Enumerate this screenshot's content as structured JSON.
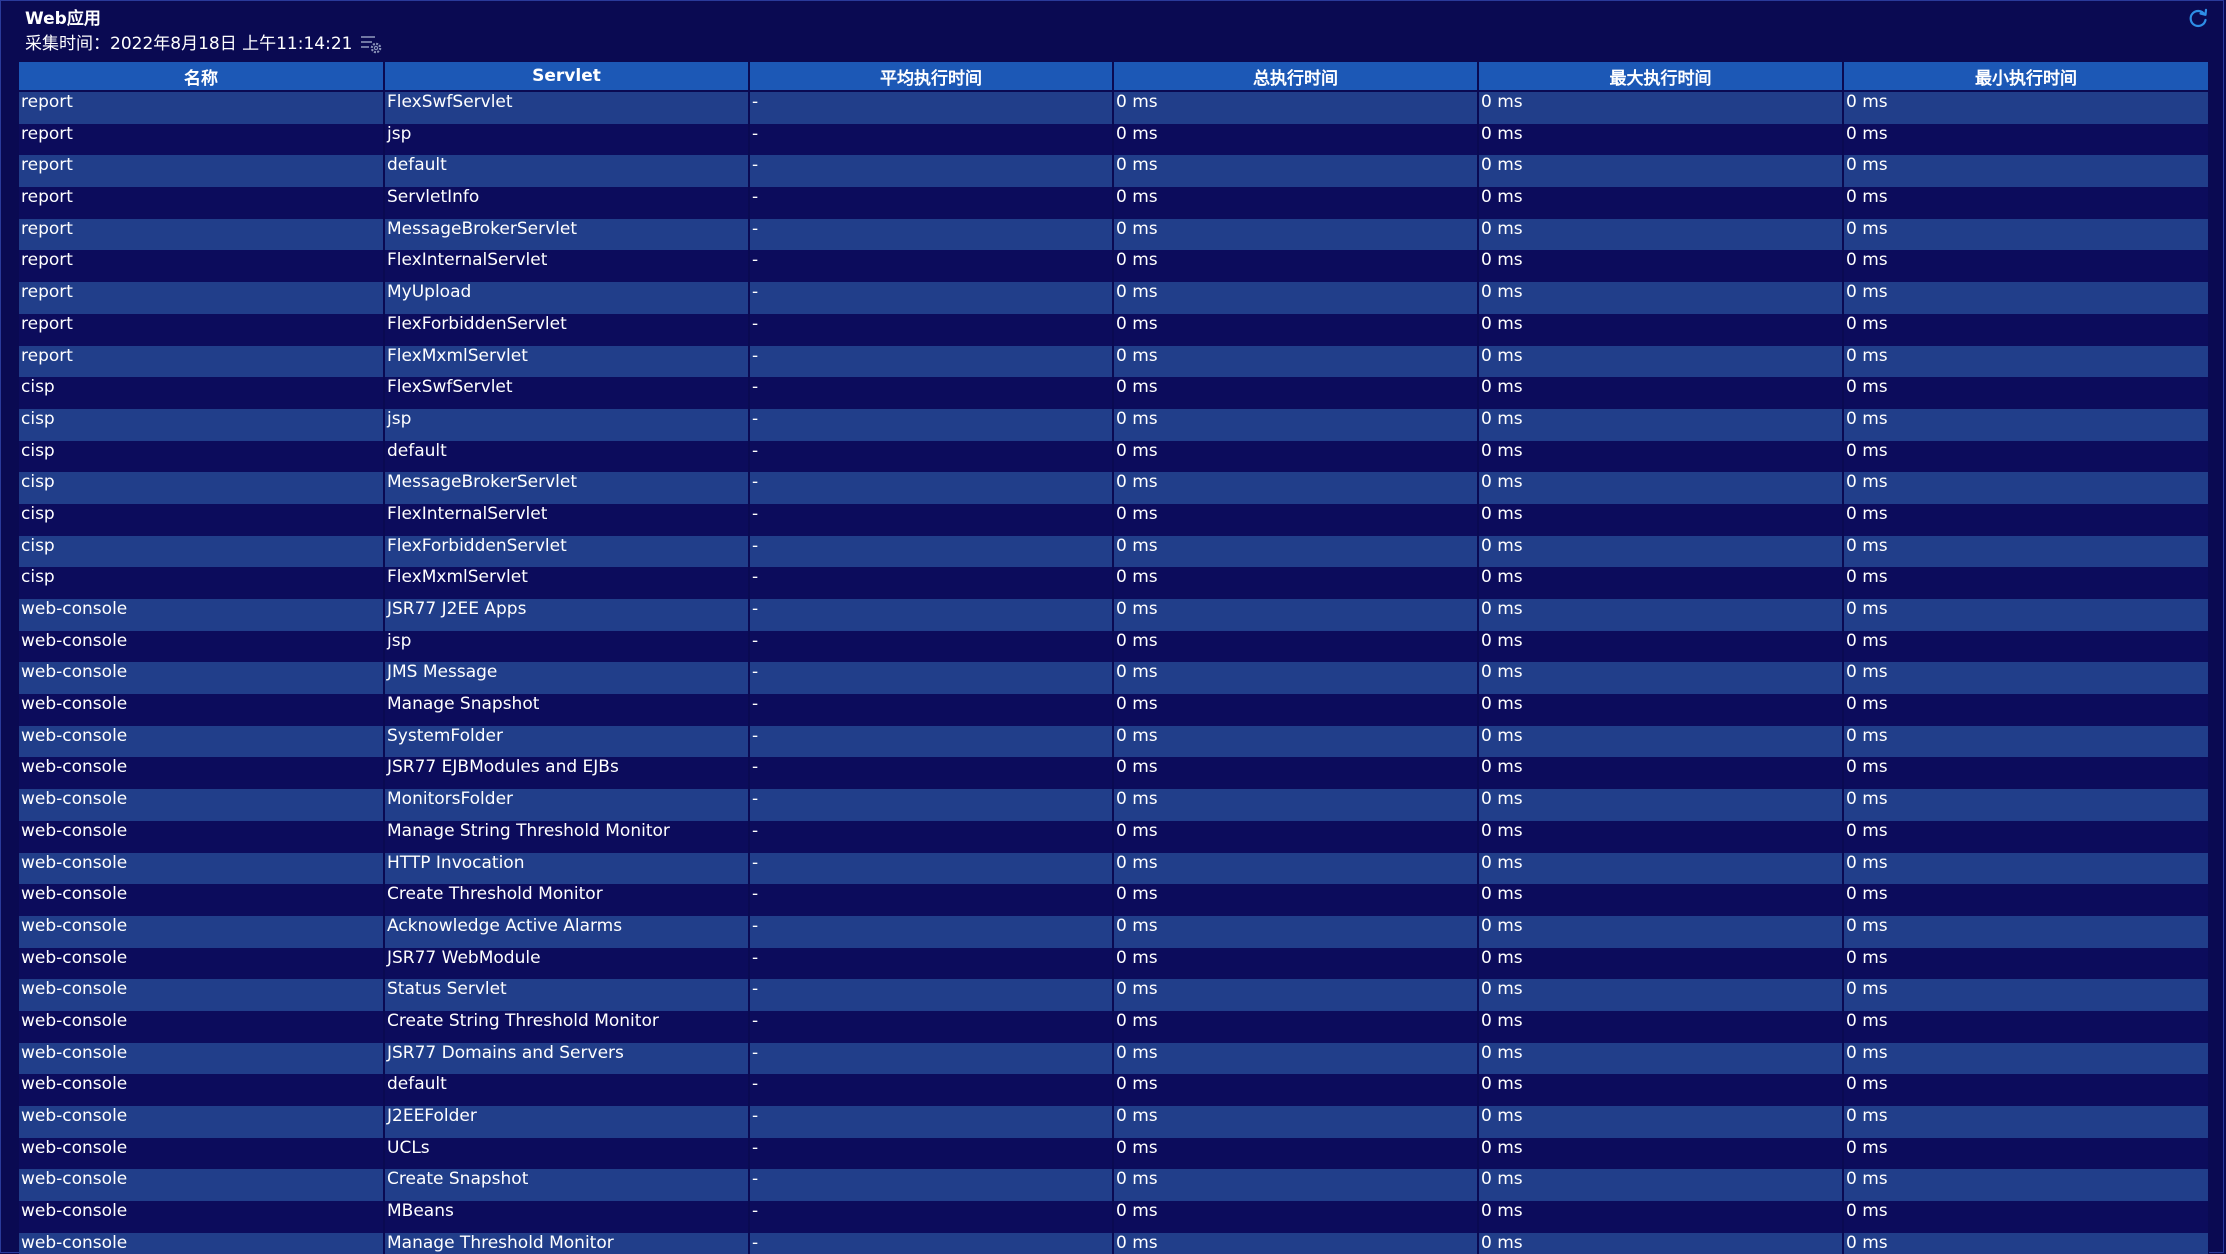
{
  "panel": {
    "title": "Web应用",
    "collect_time": "采集时间：2022年8月18日 上午11:14:21"
  },
  "icons": {
    "settings": "gear-icon",
    "refresh": "refresh-icon"
  },
  "colors": {
    "background": "#0a0a52",
    "header": "#1c58b6",
    "row_light": "#213e8a",
    "row_dark": "#0c0c5c",
    "refresh_icon": "#2e8ee6"
  },
  "table": {
    "columns": [
      "名称",
      "Servlet",
      "平均执行时间",
      "总执行时间",
      "最大执行时间",
      "最小执行时间"
    ],
    "rows": [
      [
        "report",
        "FlexSwfServlet",
        "-",
        "0 ms",
        "0 ms",
        "0 ms"
      ],
      [
        "report",
        "jsp",
        "-",
        "0 ms",
        "0 ms",
        "0 ms"
      ],
      [
        "report",
        "default",
        "-",
        "0 ms",
        "0 ms",
        "0 ms"
      ],
      [
        "report",
        "ServletInfo",
        "-",
        "0 ms",
        "0 ms",
        "0 ms"
      ],
      [
        "report",
        "MessageBrokerServlet",
        "-",
        "0 ms",
        "0 ms",
        "0 ms"
      ],
      [
        "report",
        "FlexInternalServlet",
        "-",
        "0 ms",
        "0 ms",
        "0 ms"
      ],
      [
        "report",
        "MyUpload",
        "-",
        "0 ms",
        "0 ms",
        "0 ms"
      ],
      [
        "report",
        "FlexForbiddenServlet",
        "-",
        "0 ms",
        "0 ms",
        "0 ms"
      ],
      [
        "report",
        "FlexMxmlServlet",
        "-",
        "0 ms",
        "0 ms",
        "0 ms"
      ],
      [
        "cisp",
        "FlexSwfServlet",
        "-",
        "0 ms",
        "0 ms",
        "0 ms"
      ],
      [
        "cisp",
        "jsp",
        "-",
        "0 ms",
        "0 ms",
        "0 ms"
      ],
      [
        "cisp",
        "default",
        "-",
        "0 ms",
        "0 ms",
        "0 ms"
      ],
      [
        "cisp",
        "MessageBrokerServlet",
        "-",
        "0 ms",
        "0 ms",
        "0 ms"
      ],
      [
        "cisp",
        "FlexInternalServlet",
        "-",
        "0 ms",
        "0 ms",
        "0 ms"
      ],
      [
        "cisp",
        "FlexForbiddenServlet",
        "-",
        "0 ms",
        "0 ms",
        "0 ms"
      ],
      [
        "cisp",
        "FlexMxmlServlet",
        "-",
        "0 ms",
        "0 ms",
        "0 ms"
      ],
      [
        "web-console",
        "JSR77 J2EE Apps",
        "-",
        "0 ms",
        "0 ms",
        "0 ms"
      ],
      [
        "web-console",
        "jsp",
        "-",
        "0 ms",
        "0 ms",
        "0 ms"
      ],
      [
        "web-console",
        "JMS Message",
        "-",
        "0 ms",
        "0 ms",
        "0 ms"
      ],
      [
        "web-console",
        "Manage Snapshot",
        "-",
        "0 ms",
        "0 ms",
        "0 ms"
      ],
      [
        "web-console",
        "SystemFolder",
        "-",
        "0 ms",
        "0 ms",
        "0 ms"
      ],
      [
        "web-console",
        "JSR77 EJBModules and EJBs",
        "-",
        "0 ms",
        "0 ms",
        "0 ms"
      ],
      [
        "web-console",
        "MonitorsFolder",
        "-",
        "0 ms",
        "0 ms",
        "0 ms"
      ],
      [
        "web-console",
        "Manage String Threshold Monitor",
        "-",
        "0 ms",
        "0 ms",
        "0 ms"
      ],
      [
        "web-console",
        "HTTP Invocation",
        "-",
        "0 ms",
        "0 ms",
        "0 ms"
      ],
      [
        "web-console",
        "Create Threshold Monitor",
        "-",
        "0 ms",
        "0 ms",
        "0 ms"
      ],
      [
        "web-console",
        "Acknowledge Active Alarms",
        "-",
        "0 ms",
        "0 ms",
        "0 ms"
      ],
      [
        "web-console",
        "JSR77 WebModule",
        "-",
        "0 ms",
        "0 ms",
        "0 ms"
      ],
      [
        "web-console",
        "Status Servlet",
        "-",
        "0 ms",
        "0 ms",
        "0 ms"
      ],
      [
        "web-console",
        "Create String Threshold Monitor",
        "-",
        "0 ms",
        "0 ms",
        "0 ms"
      ],
      [
        "web-console",
        "JSR77 Domains and Servers",
        "-",
        "0 ms",
        "0 ms",
        "0 ms"
      ],
      [
        "web-console",
        "default",
        "-",
        "0 ms",
        "0 ms",
        "0 ms"
      ],
      [
        "web-console",
        "J2EEFolder",
        "-",
        "0 ms",
        "0 ms",
        "0 ms"
      ],
      [
        "web-console",
        "UCLs",
        "-",
        "0 ms",
        "0 ms",
        "0 ms"
      ],
      [
        "web-console",
        "Create Snapshot",
        "-",
        "0 ms",
        "0 ms",
        "0 ms"
      ],
      [
        "web-console",
        "MBeans",
        "-",
        "0 ms",
        "0 ms",
        "0 ms"
      ],
      [
        "web-console",
        "Manage Threshold Monitor",
        "-",
        "0 ms",
        "0 ms",
        "0 ms"
      ]
    ]
  }
}
